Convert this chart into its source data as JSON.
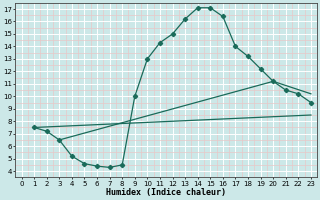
{
  "xlabel": "Humidex (Indice chaleur)",
  "bg_color": "#cce8e8",
  "grid_color": "#ffffff",
  "grid_color_minor": "#e8c8c8",
  "line_color": "#1a6b5a",
  "xlim": [
    -0.5,
    23.5
  ],
  "ylim": [
    3.5,
    17.5
  ],
  "xticks": [
    0,
    1,
    2,
    3,
    4,
    5,
    6,
    7,
    8,
    9,
    10,
    11,
    12,
    13,
    14,
    15,
    16,
    17,
    18,
    19,
    20,
    21,
    22,
    23
  ],
  "yticks": [
    4,
    5,
    6,
    7,
    8,
    9,
    10,
    11,
    12,
    13,
    14,
    15,
    16,
    17
  ],
  "curve1_x": [
    1,
    2,
    3,
    4,
    5,
    6,
    7,
    8,
    9,
    10,
    11,
    12,
    13,
    14,
    15,
    16,
    17,
    18,
    19,
    20,
    21,
    22,
    23
  ],
  "curve1_y": [
    7.5,
    7.2,
    6.5,
    5.2,
    4.6,
    4.4,
    4.3,
    4.5,
    10.0,
    13.0,
    14.3,
    15.0,
    16.2,
    17.1,
    17.1,
    16.4,
    14.0,
    13.2,
    12.2,
    11.2,
    10.5,
    10.2,
    9.5
  ],
  "curve2_x": [
    1,
    23
  ],
  "curve2_y": [
    7.5,
    8.5
  ],
  "curve3_x": [
    3,
    20,
    23
  ],
  "curve3_y": [
    6.5,
    11.2,
    10.2
  ]
}
